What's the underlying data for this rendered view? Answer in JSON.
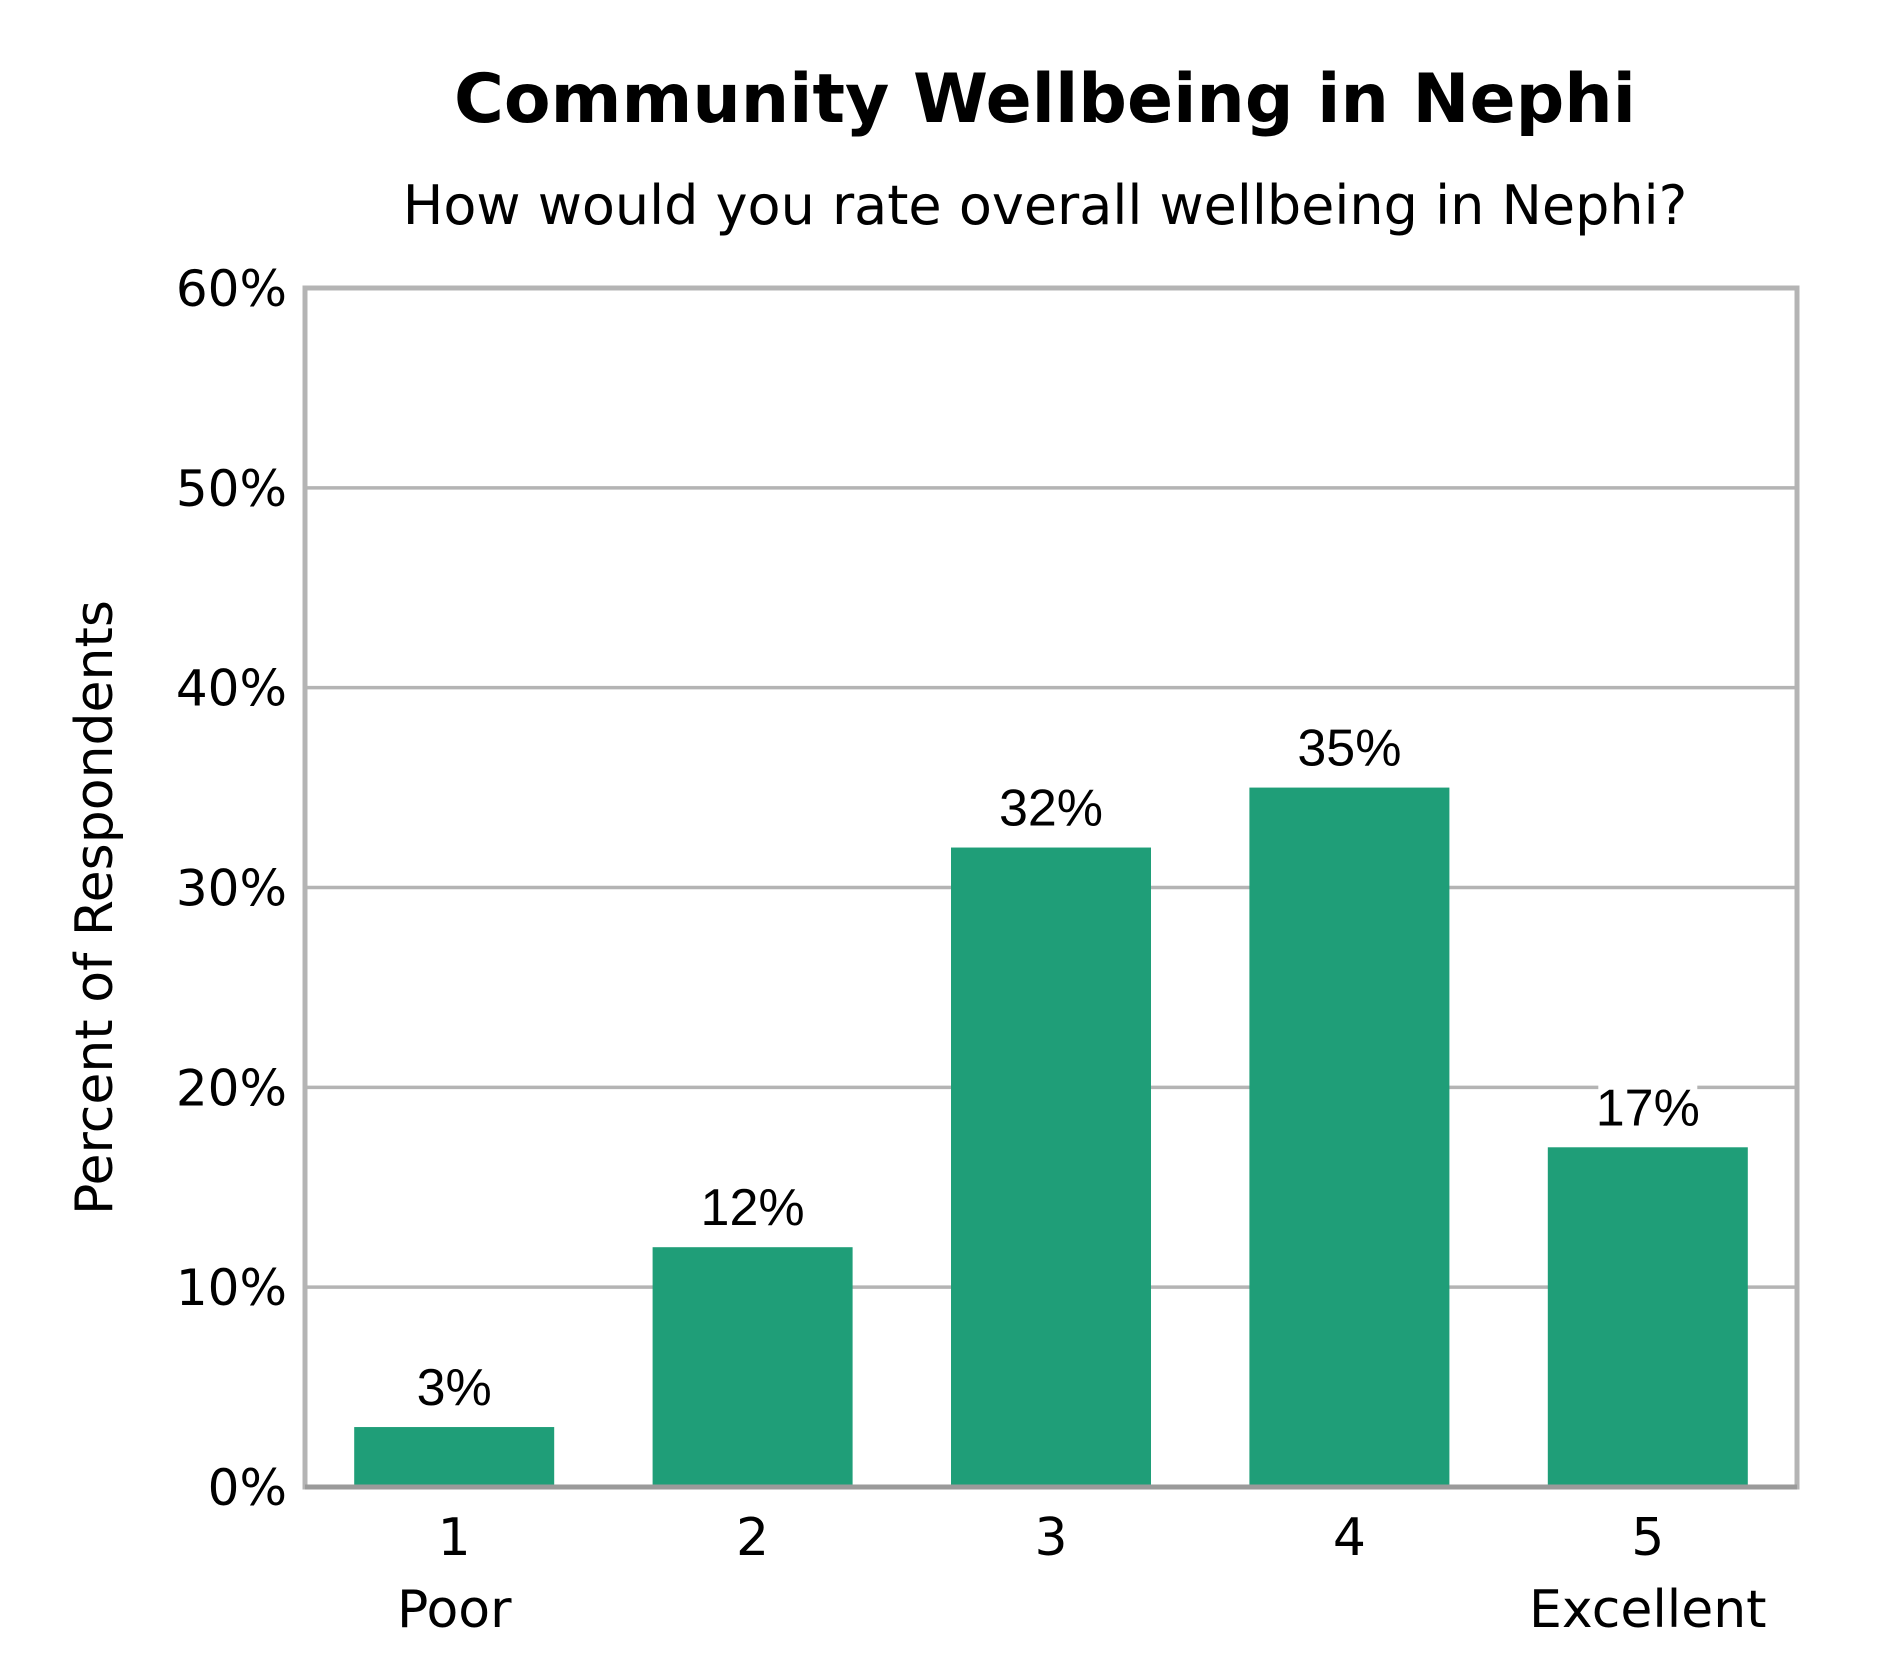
{
  "chart_data": {
    "type": "bar",
    "title": "Community Wellbeing in Nephi",
    "subtitle": "How would you rate overall wellbeing in Nephi?",
    "ylabel": "Percent of Respondents",
    "xlabel": "",
    "categories": [
      "1",
      "2",
      "3",
      "4",
      "5"
    ],
    "category_sublabels": [
      "Poor",
      "",
      "",
      "",
      "Excellent"
    ],
    "values": [
      3,
      12,
      32,
      35,
      17
    ],
    "data_labels": [
      "3%",
      "12%",
      "32%",
      "35%",
      "17%"
    ],
    "ylim": [
      0,
      60
    ],
    "yticks": [
      0,
      10,
      20,
      30,
      40,
      50,
      60
    ],
    "ytick_labels": [
      "0%",
      "10%",
      "20%",
      "30%",
      "40%",
      "50%",
      "60%"
    ],
    "grid": true,
    "legend": "none",
    "bar_color": "#1f9e78",
    "grid_color": "#b4b4b4",
    "frame_color": "#b4b4b4"
  }
}
